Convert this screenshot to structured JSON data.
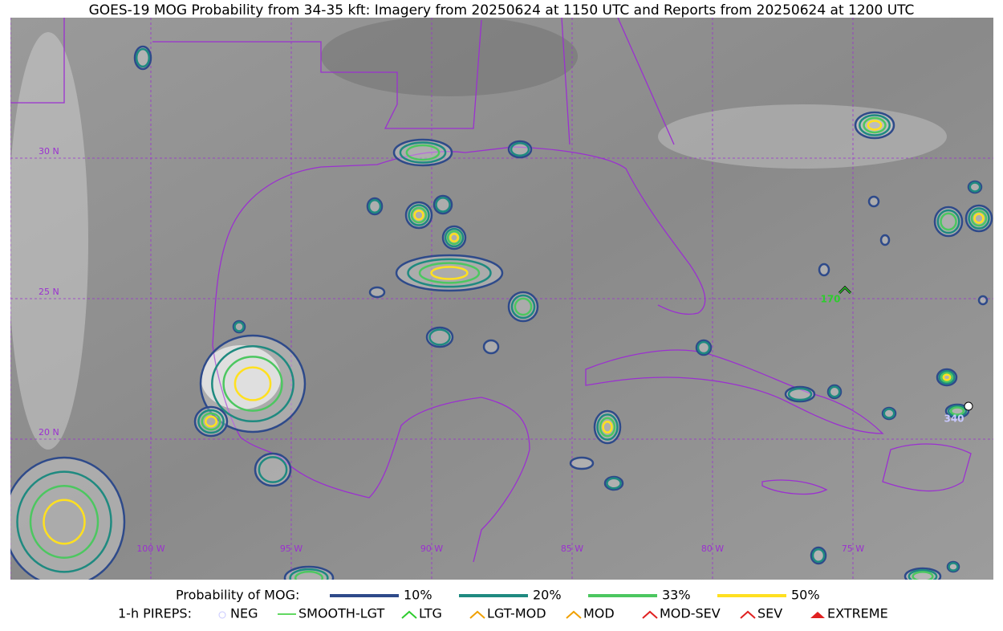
{
  "title": "GOES-19 MOG Probability from 34-35 kft: Imagery from 20250624 at 1150 UTC and Reports from 20250624 at 1200 UTC",
  "map": {
    "lat_labels": [
      "30 N",
      "25 N",
      "20 N"
    ],
    "lon_labels": [
      "100 W",
      "95 W",
      "90 W",
      "85 W",
      "80 W",
      "75 W"
    ],
    "reports": [
      {
        "label": "170"
      },
      {
        "label": "340"
      }
    ]
  },
  "legend": {
    "title": "Probability of MOG:",
    "contours": [
      "10%",
      "20%",
      "33%",
      "50%"
    ],
    "pireps_title": "1-h PIREPS:",
    "pireps": [
      "NEG",
      "SMOOTH-LGT",
      "LTG",
      "LGT-MOD",
      "MOD",
      "MOD-SEV",
      "SEV",
      "EXTREME"
    ]
  }
}
